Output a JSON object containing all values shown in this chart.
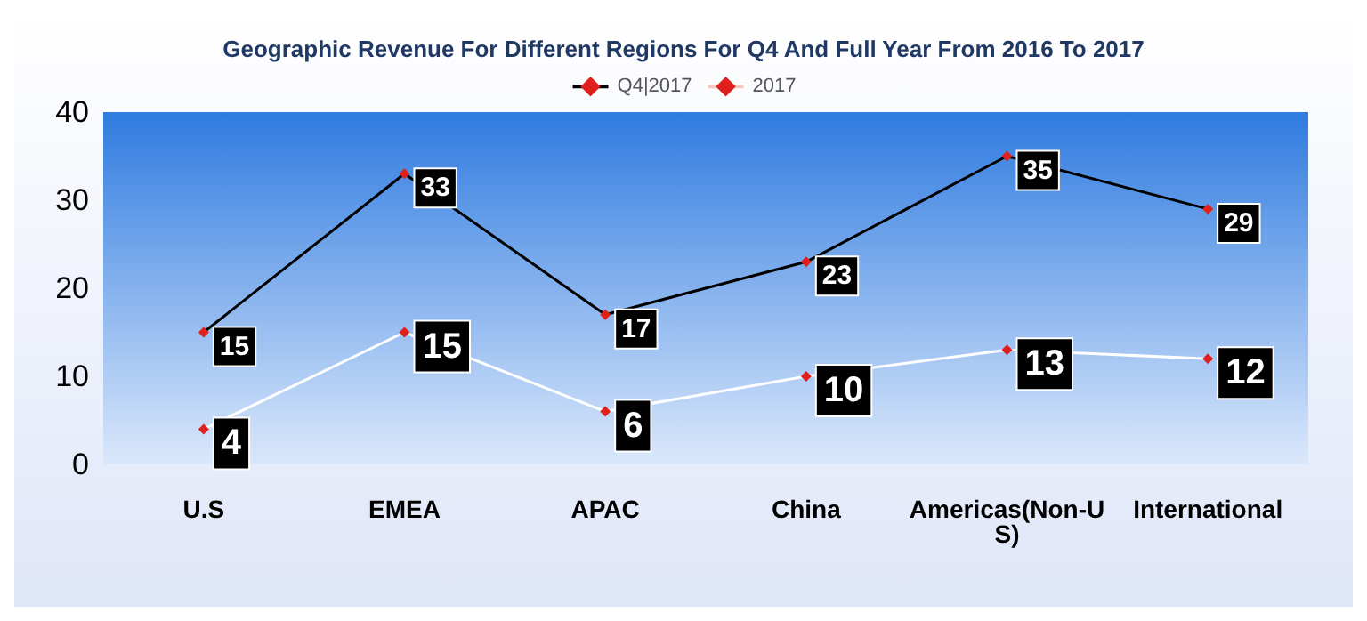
{
  "chart_data": {
    "type": "line",
    "title": "Geographic Revenue For Different Regions For Q4 And Full Year From 2016 To 2017",
    "categories": [
      "U.S",
      "EMEA",
      "APAC",
      "China",
      "Americas(Non-US)",
      "International"
    ],
    "series": [
      {
        "name": "Q4|2017",
        "color": "#000000",
        "values": [
          15,
          33,
          17,
          23,
          35,
          29
        ]
      },
      {
        "name": "2017",
        "color": "#ffffff",
        "values": [
          4,
          15,
          6,
          10,
          13,
          12
        ]
      }
    ],
    "ylim": [
      0,
      40
    ],
    "yticks": [
      0,
      10,
      20,
      30,
      40
    ],
    "grid": false,
    "legend": "top",
    "marker": "diamond",
    "line_style": "solid",
    "data_labels": true
  }
}
